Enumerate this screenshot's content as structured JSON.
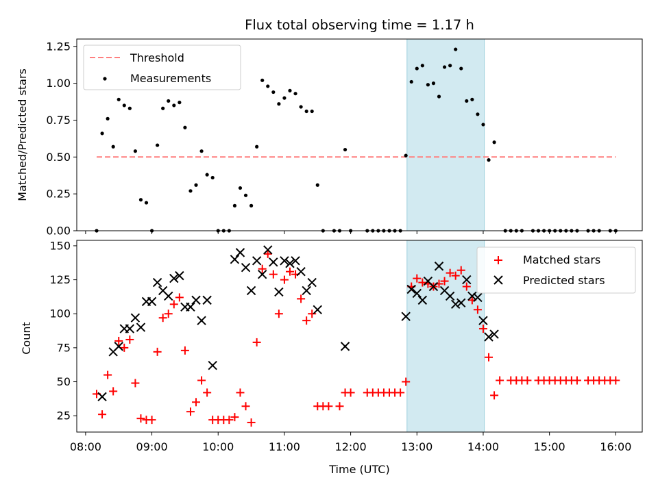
{
  "colors": {
    "threshold": "#ff7f7f",
    "measurement": "#000000",
    "matched": "#ff0000",
    "predicted": "#000000",
    "highlight_fill": "#add8e6",
    "highlight_edge": "#9ccfdc"
  },
  "chart_data": [
    {
      "type": "scatter",
      "title": "Flux total observing time = 1.17 h",
      "xlabel": "",
      "ylabel": "Matched/Predicted stars",
      "xlim": [
        "07:52",
        "16:24"
      ],
      "ylim": [
        0,
        1.3
      ],
      "yticks": [
        0,
        0.25,
        0.5,
        0.75,
        1.0,
        1.25
      ],
      "ytick_labels": [
        "0.00",
        "0.25",
        "0.50",
        "0.75",
        "1.00",
        "1.25"
      ],
      "grid": false,
      "legend_position": "upper left",
      "highlight_span": [
        "12:51",
        "14:01"
      ],
      "threshold": {
        "name": "Threshold",
        "value": 0.5,
        "x_range": [
          "08:10",
          "16:00"
        ]
      },
      "series": [
        {
          "name": "Measurements",
          "points": [
            [
              "08:10",
              0.0
            ],
            [
              "08:15",
              0.66
            ],
            [
              "08:20",
              0.76
            ],
            [
              "08:25",
              0.57
            ],
            [
              "08:30",
              0.89
            ],
            [
              "08:35",
              0.85
            ],
            [
              "08:40",
              0.83
            ],
            [
              "08:45",
              0.54
            ],
            [
              "08:50",
              0.21
            ],
            [
              "08:55",
              0.19
            ],
            [
              "09:00",
              0.0
            ],
            [
              "09:05",
              0.58
            ],
            [
              "09:10",
              0.83
            ],
            [
              "09:15",
              0.88
            ],
            [
              "09:20",
              0.85
            ],
            [
              "09:25",
              0.87
            ],
            [
              "09:30",
              0.7
            ],
            [
              "09:35",
              0.27
            ],
            [
              "09:40",
              0.31
            ],
            [
              "09:45",
              0.54
            ],
            [
              "09:50",
              0.38
            ],
            [
              "09:55",
              0.36
            ],
            [
              "10:00",
              0.0
            ],
            [
              "10:05",
              0.0
            ],
            [
              "10:10",
              0.0
            ],
            [
              "10:15",
              0.17
            ],
            [
              "10:20",
              0.29
            ],
            [
              "10:25",
              0.24
            ],
            [
              "10:30",
              0.17
            ],
            [
              "10:35",
              0.57
            ],
            [
              "10:40",
              1.02
            ],
            [
              "10:45",
              0.98
            ],
            [
              "10:50",
              0.94
            ],
            [
              "10:55",
              0.86
            ],
            [
              "11:00",
              0.9
            ],
            [
              "11:05",
              0.95
            ],
            [
              "11:10",
              0.93
            ],
            [
              "11:15",
              0.84
            ],
            [
              "11:20",
              0.81
            ],
            [
              "11:25",
              0.81
            ],
            [
              "11:30",
              0.31
            ],
            [
              "11:35",
              0.0
            ],
            [
              "11:45",
              0.0
            ],
            [
              "11:50",
              0.0
            ],
            [
              "11:55",
              0.55
            ],
            [
              "12:00",
              0.0
            ],
            [
              "12:15",
              0.0
            ],
            [
              "12:20",
              0.0
            ],
            [
              "12:25",
              0.0
            ],
            [
              "12:30",
              0.0
            ],
            [
              "12:35",
              0.0
            ],
            [
              "12:40",
              0.0
            ],
            [
              "12:45",
              0.0
            ],
            [
              "12:50",
              0.51
            ],
            [
              "12:55",
              1.01
            ],
            [
              "13:00",
              1.1
            ],
            [
              "13:05",
              1.12
            ],
            [
              "13:10",
              0.99
            ],
            [
              "13:15",
              1.0
            ],
            [
              "13:20",
              0.91
            ],
            [
              "13:25",
              1.11
            ],
            [
              "13:30",
              1.12
            ],
            [
              "13:35",
              1.23
            ],
            [
              "13:40",
              1.1
            ],
            [
              "13:45",
              0.88
            ],
            [
              "13:50",
              0.89
            ],
            [
              "13:55",
              0.79
            ],
            [
              "14:00",
              0.72
            ],
            [
              "14:05",
              0.48
            ],
            [
              "14:10",
              0.6
            ],
            [
              "14:20",
              0.0
            ],
            [
              "14:25",
              0.0
            ],
            [
              "14:30",
              0.0
            ],
            [
              "14:35",
              0.0
            ],
            [
              "14:45",
              0.0
            ],
            [
              "14:50",
              0.0
            ],
            [
              "14:55",
              0.0
            ],
            [
              "15:00",
              0.0
            ],
            [
              "15:05",
              0.0
            ],
            [
              "15:10",
              0.0
            ],
            [
              "15:15",
              0.0
            ],
            [
              "15:20",
              0.0
            ],
            [
              "15:25",
              0.0
            ],
            [
              "15:35",
              0.0
            ],
            [
              "15:40",
              0.0
            ],
            [
              "15:45",
              0.0
            ],
            [
              "15:55",
              0.0
            ],
            [
              "16:00",
              0.0
            ]
          ]
        }
      ]
    },
    {
      "type": "scatter",
      "title": "",
      "xlabel": "Time (UTC)",
      "ylabel": "Count",
      "xlim": [
        "07:52",
        "16:24"
      ],
      "ylim": [
        13,
        154
      ],
      "yticks": [
        25,
        50,
        75,
        100,
        125,
        150
      ],
      "xticks": [
        "08:00",
        "09:00",
        "10:00",
        "11:00",
        "12:00",
        "13:00",
        "14:00",
        "15:00",
        "16:00"
      ],
      "grid": false,
      "legend_position": "upper right",
      "highlight_span": [
        "12:51",
        "14:01"
      ],
      "series": [
        {
          "name": "Matched stars",
          "marker": "+",
          "points": [
            [
              "08:10",
              41
            ],
            [
              "08:15",
              26
            ],
            [
              "08:20",
              55
            ],
            [
              "08:25",
              43
            ],
            [
              "08:30",
              80
            ],
            [
              "08:35",
              75
            ],
            [
              "08:40",
              81
            ],
            [
              "08:45",
              49
            ],
            [
              "08:50",
              23
            ],
            [
              "08:55",
              22
            ],
            [
              "09:00",
              22
            ],
            [
              "09:05",
              72
            ],
            [
              "09:10",
              97
            ],
            [
              "09:15",
              100
            ],
            [
              "09:20",
              107
            ],
            [
              "09:25",
              112
            ],
            [
              "09:30",
              73
            ],
            [
              "09:35",
              28
            ],
            [
              "09:40",
              35
            ],
            [
              "09:45",
              51
            ],
            [
              "09:50",
              42
            ],
            [
              "09:55",
              22
            ],
            [
              "10:00",
              22
            ],
            [
              "10:05",
              22
            ],
            [
              "10:10",
              22
            ],
            [
              "10:15",
              24
            ],
            [
              "10:20",
              42
            ],
            [
              "10:25",
              32
            ],
            [
              "10:30",
              20
            ],
            [
              "10:35",
              79
            ],
            [
              "10:40",
              133
            ],
            [
              "10:45",
              144
            ],
            [
              "10:50",
              129
            ],
            [
              "10:55",
              100
            ],
            [
              "11:00",
              125
            ],
            [
              "11:05",
              131
            ],
            [
              "11:10",
              129
            ],
            [
              "11:15",
              111
            ],
            [
              "11:20",
              95
            ],
            [
              "11:25",
              100
            ],
            [
              "11:30",
              32
            ],
            [
              "11:35",
              32
            ],
            [
              "11:40",
              32
            ],
            [
              "11:50",
              32
            ],
            [
              "11:55",
              42
            ],
            [
              "12:00",
              42
            ],
            [
              "12:15",
              42
            ],
            [
              "12:20",
              42
            ],
            [
              "12:25",
              42
            ],
            [
              "12:30",
              42
            ],
            [
              "12:35",
              42
            ],
            [
              "12:40",
              42
            ],
            [
              "12:45",
              42
            ],
            [
              "12:50",
              50
            ],
            [
              "12:55",
              120
            ],
            [
              "13:00",
              126
            ],
            [
              "13:05",
              123
            ],
            [
              "13:10",
              122
            ],
            [
              "13:15",
              120
            ],
            [
              "13:20",
              122
            ],
            [
              "13:25",
              124
            ],
            [
              "13:30",
              130
            ],
            [
              "13:35",
              128
            ],
            [
              "13:40",
              132
            ],
            [
              "13:45",
              120
            ],
            [
              "13:50",
              110
            ],
            [
              "13:55",
              103
            ],
            [
              "14:00",
              89
            ],
            [
              "14:05",
              68
            ],
            [
              "14:10",
              40
            ],
            [
              "14:15",
              51
            ],
            [
              "14:25",
              51
            ],
            [
              "14:30",
              51
            ],
            [
              "14:35",
              51
            ],
            [
              "14:40",
              51
            ],
            [
              "14:50",
              51
            ],
            [
              "14:55",
              51
            ],
            [
              "15:00",
              51
            ],
            [
              "15:05",
              51
            ],
            [
              "15:10",
              51
            ],
            [
              "15:15",
              51
            ],
            [
              "15:20",
              51
            ],
            [
              "15:25",
              51
            ],
            [
              "15:35",
              51
            ],
            [
              "15:40",
              51
            ],
            [
              "15:45",
              51
            ],
            [
              "15:50",
              51
            ],
            [
              "15:55",
              51
            ],
            [
              "16:00",
              51
            ]
          ]
        },
        {
          "name": "Predicted stars",
          "marker": "x",
          "points": [
            [
              "08:15",
              39
            ],
            [
              "08:25",
              72
            ],
            [
              "08:30",
              76
            ],
            [
              "08:35",
              89
            ],
            [
              "08:40",
              89
            ],
            [
              "08:45",
              97
            ],
            [
              "08:50",
              90
            ],
            [
              "08:55",
              109
            ],
            [
              "09:00",
              109
            ],
            [
              "09:05",
              123
            ],
            [
              "09:10",
              117
            ],
            [
              "09:15",
              113
            ],
            [
              "09:20",
              126
            ],
            [
              "09:25",
              128
            ],
            [
              "09:30",
              105
            ],
            [
              "09:35",
              105
            ],
            [
              "09:40",
              110
            ],
            [
              "09:45",
              95
            ],
            [
              "09:50",
              110
            ],
            [
              "09:55",
              62
            ],
            [
              "10:15",
              140
            ],
            [
              "10:20",
              145
            ],
            [
              "10:25",
              134
            ],
            [
              "10:30",
              117
            ],
            [
              "10:35",
              139
            ],
            [
              "10:40",
              129
            ],
            [
              "10:45",
              147
            ],
            [
              "10:50",
              138
            ],
            [
              "10:55",
              116
            ],
            [
              "11:00",
              139
            ],
            [
              "11:05",
              137
            ],
            [
              "11:10",
              139
            ],
            [
              "11:15",
              131
            ],
            [
              "11:20",
              117
            ],
            [
              "11:25",
              123
            ],
            [
              "11:30",
              103
            ],
            [
              "11:55",
              76
            ],
            [
              "12:50",
              98
            ],
            [
              "12:55",
              118
            ],
            [
              "13:00",
              115
            ],
            [
              "13:05",
              110
            ],
            [
              "13:10",
              124
            ],
            [
              "13:15",
              120
            ],
            [
              "13:20",
              135
            ],
            [
              "13:25",
              117
            ],
            [
              "13:30",
              113
            ],
            [
              "13:35",
              107
            ],
            [
              "13:40",
              108
            ],
            [
              "13:45",
              125
            ],
            [
              "13:50",
              113
            ],
            [
              "13:55",
              112
            ],
            [
              "14:00",
              95
            ],
            [
              "14:05",
              83
            ],
            [
              "14:10",
              85
            ]
          ]
        }
      ]
    }
  ]
}
